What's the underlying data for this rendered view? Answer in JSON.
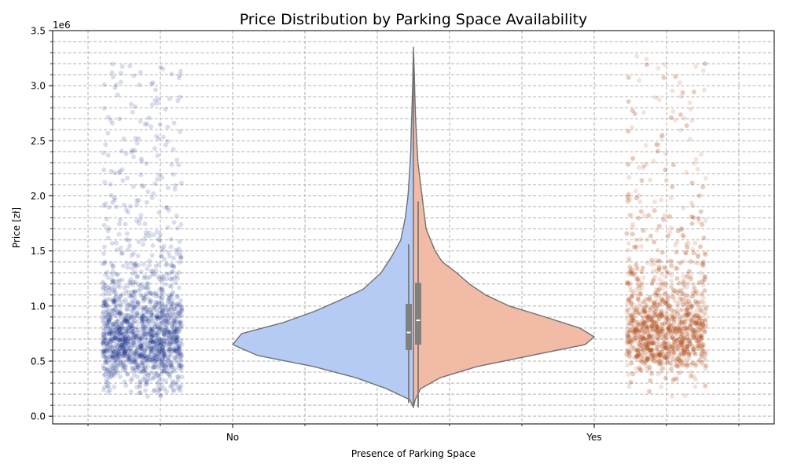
{
  "chart_data": {
    "type": "violin",
    "title": "Price Distribution by Parking Space Availability",
    "xlabel": "Presence of Parking Space",
    "ylabel": "Price [zł]",
    "y_offset_label": "1e6",
    "categories": [
      "No",
      "Yes"
    ],
    "ylim": [
      -0.07,
      3.5
    ],
    "y_ticks": [
      0.0,
      0.5,
      1.0,
      1.5,
      2.0,
      2.5,
      3.0,
      3.5
    ],
    "y_tick_labels": [
      "0.0",
      "0.5",
      "1.0",
      "1.5",
      "2.0",
      "2.5",
      "3.0",
      "3.5"
    ],
    "grid": true,
    "split_violin": true,
    "series": [
      {
        "name": "No",
        "violin_color": "#b6cbf4",
        "strip_color": "#001c7f",
        "strip_range": [
          0.18,
          3.2
        ],
        "box": {
          "q1": 0.6,
          "median": 0.76,
          "q3": 1.02,
          "whisker_low": 0.12,
          "whisker_high": 1.56
        },
        "density_profile": [
          [
            0.08,
            0.0
          ],
          [
            0.15,
            0.02
          ],
          [
            0.25,
            0.15
          ],
          [
            0.35,
            0.32
          ],
          [
            0.45,
            0.55
          ],
          [
            0.55,
            0.86
          ],
          [
            0.65,
            1.0
          ],
          [
            0.75,
            0.95
          ],
          [
            0.85,
            0.72
          ],
          [
            0.95,
            0.55
          ],
          [
            1.05,
            0.41
          ],
          [
            1.15,
            0.28
          ],
          [
            1.3,
            0.18
          ],
          [
            1.45,
            0.12
          ],
          [
            1.6,
            0.07
          ],
          [
            1.8,
            0.045
          ],
          [
            2.0,
            0.03
          ],
          [
            2.2,
            0.022
          ],
          [
            2.4,
            0.015
          ],
          [
            2.6,
            0.012
          ],
          [
            2.8,
            0.008
          ],
          [
            3.0,
            0.004
          ],
          [
            3.2,
            0.002
          ],
          [
            3.3,
            0.0
          ]
        ]
      },
      {
        "name": "Yes",
        "violin_color": "#f1bba5",
        "strip_color": "#b1400d",
        "strip_range": [
          0.18,
          3.27
        ],
        "box": {
          "q1": 0.65,
          "median": 0.87,
          "q3": 1.21,
          "whisker_low": 0.08,
          "whisker_high": 1.95
        },
        "density_profile": [
          [
            0.08,
            0.0
          ],
          [
            0.15,
            0.01
          ],
          [
            0.25,
            0.04
          ],
          [
            0.35,
            0.15
          ],
          [
            0.45,
            0.35
          ],
          [
            0.55,
            0.65
          ],
          [
            0.65,
            0.95
          ],
          [
            0.72,
            1.0
          ],
          [
            0.8,
            0.92
          ],
          [
            0.9,
            0.73
          ],
          [
            1.0,
            0.53
          ],
          [
            1.1,
            0.4
          ],
          [
            1.2,
            0.31
          ],
          [
            1.3,
            0.24
          ],
          [
            1.4,
            0.16
          ],
          [
            1.5,
            0.12
          ],
          [
            1.7,
            0.07
          ],
          [
            1.9,
            0.055
          ],
          [
            2.1,
            0.04
          ],
          [
            2.3,
            0.025
          ],
          [
            2.5,
            0.018
          ],
          [
            2.7,
            0.012
          ],
          [
            2.9,
            0.008
          ],
          [
            3.1,
            0.005
          ],
          [
            3.35,
            0.0
          ]
        ]
      }
    ]
  }
}
